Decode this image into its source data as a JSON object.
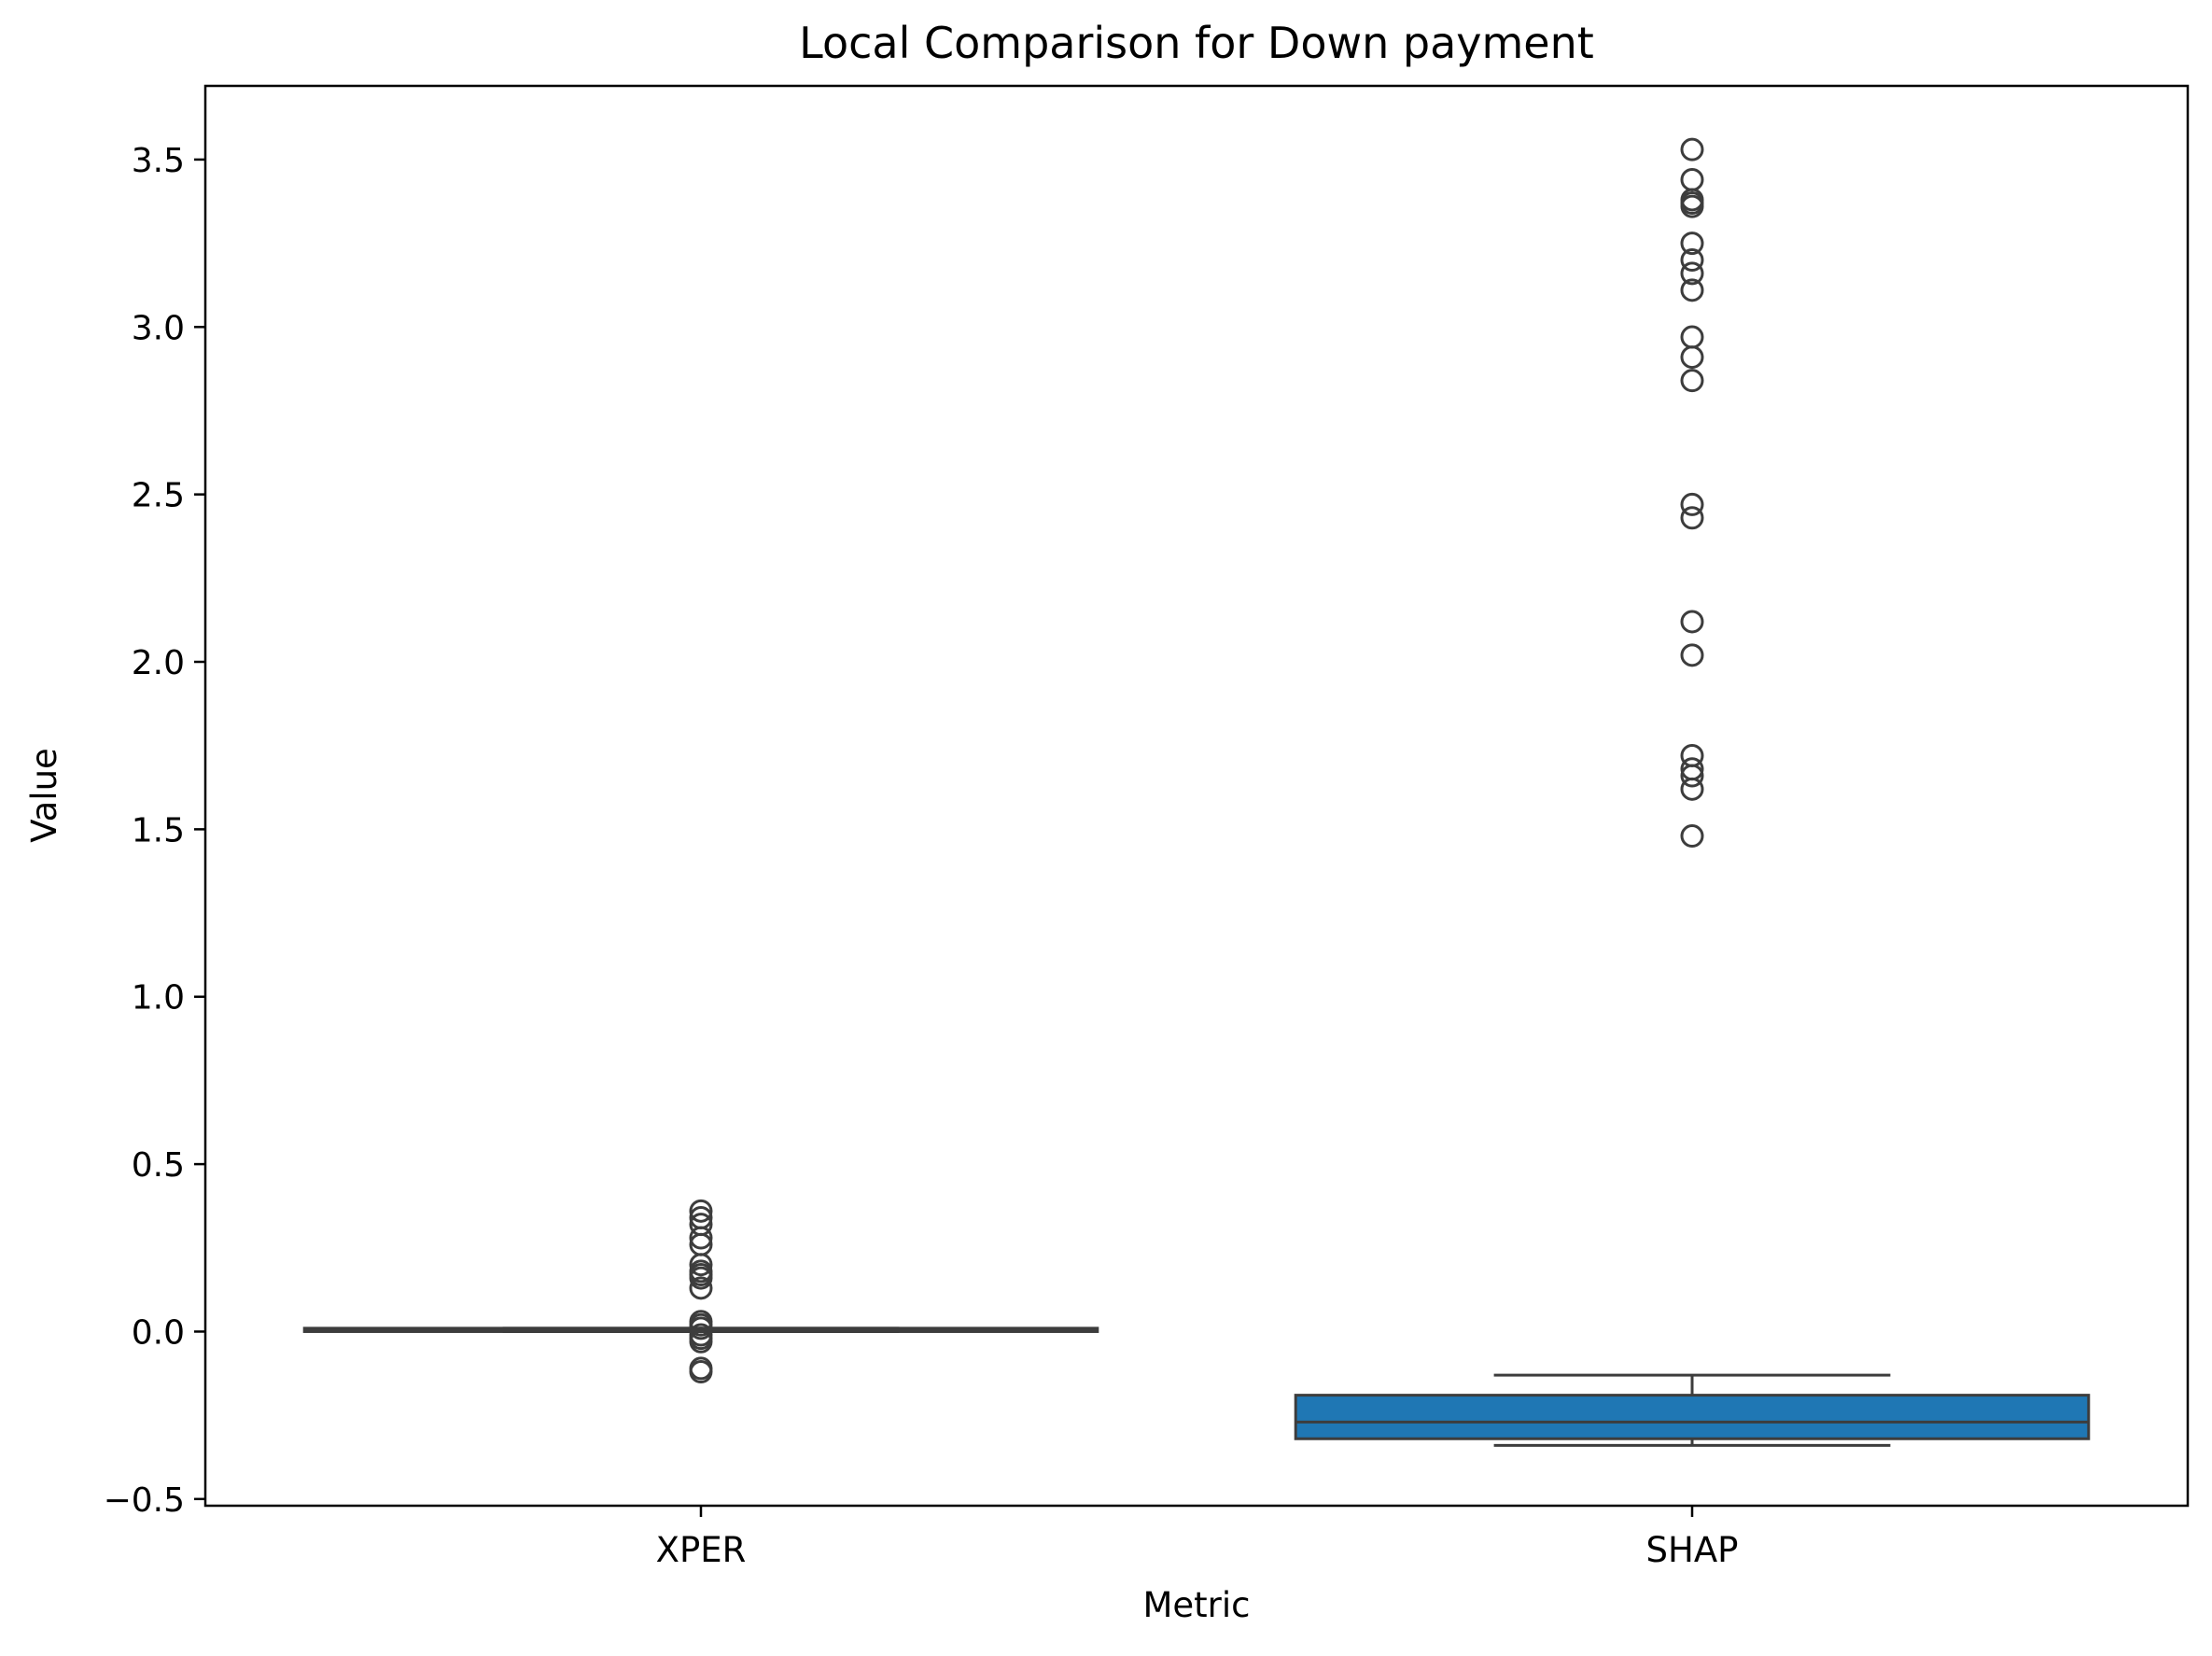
{
  "chart_data": {
    "type": "box",
    "title": "Local Comparison for Down payment",
    "xlabel": "Metric",
    "ylabel": "Value",
    "ylim": [
      -0.52,
      3.72
    ],
    "yticks": [
      -0.5,
      0.0,
      0.5,
      1.0,
      1.5,
      2.0,
      2.5,
      3.0,
      3.5
    ],
    "ytick_labels": [
      "−0.5",
      "0.0",
      "0.5",
      "1.0",
      "1.5",
      "2.0",
      "2.5",
      "3.0",
      "3.5"
    ],
    "categories": [
      "XPER",
      "SHAP"
    ],
    "grid": false,
    "boxes": [
      {
        "name": "XPER",
        "color": "#1f77b4",
        "whislo": 0.0,
        "q1": 0.0,
        "median": 0.005,
        "q3": 0.01,
        "whishi": 0.01,
        "outliers": [
          0.36,
          0.34,
          0.32,
          0.28,
          0.26,
          0.2,
          0.18,
          0.17,
          0.16,
          0.13,
          0.03,
          0.02,
          0.01,
          -0.01,
          -0.02,
          -0.03,
          -0.11,
          -0.12
        ]
      },
      {
        "name": "SHAP",
        "color": "#1f77b4",
        "whislo": -0.34,
        "q1": -0.32,
        "median": -0.27,
        "q3": -0.19,
        "whishi": -0.13,
        "outliers": [
          3.53,
          3.44,
          3.38,
          3.37,
          3.36,
          3.25,
          3.2,
          3.16,
          3.11,
          2.97,
          2.91,
          2.84,
          2.47,
          2.43,
          2.12,
          2.02,
          1.72,
          1.68,
          1.66,
          1.62,
          1.48
        ]
      }
    ]
  }
}
